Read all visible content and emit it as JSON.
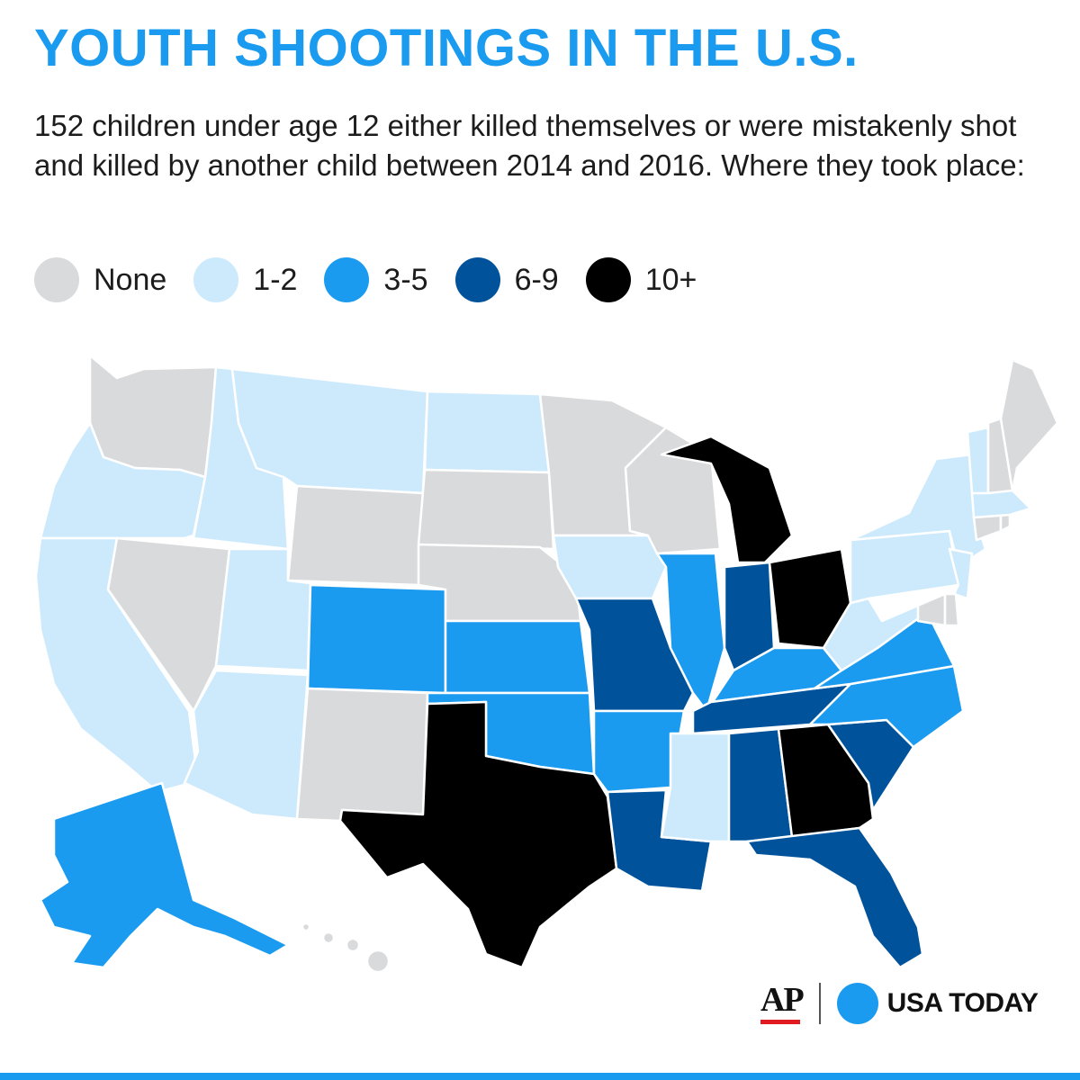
{
  "title": "YOUTH SHOOTINGS IN THE U.S.",
  "subtitle": "152 children under age 12 either killed themselves or were mistakenly shot and  killed by another child between 2014 and 2016. Where they took place:",
  "legend": [
    {
      "label": "None",
      "color": "#d9dadc"
    },
    {
      "label": "1-2",
      "color": "#cdeafd"
    },
    {
      "label": "3-5",
      "color": "#1a9bf0"
    },
    {
      "label": "6-9",
      "color": "#00539b"
    },
    {
      "label": "10+",
      "color": "#000000"
    }
  ],
  "states": [
    {
      "name": "Washington",
      "category": "None"
    },
    {
      "name": "Oregon",
      "category": "1-2"
    },
    {
      "name": "California",
      "category": "1-2"
    },
    {
      "name": "Idaho",
      "category": "1-2"
    },
    {
      "name": "Nevada",
      "category": "None"
    },
    {
      "name": "Montana",
      "category": "1-2"
    },
    {
      "name": "Wyoming",
      "category": "None"
    },
    {
      "name": "Utah",
      "category": "1-2"
    },
    {
      "name": "Arizona",
      "category": "1-2"
    },
    {
      "name": "Colorado",
      "category": "3-5"
    },
    {
      "name": "New Mexico",
      "category": "None"
    },
    {
      "name": "North Dakota",
      "category": "1-2"
    },
    {
      "name": "South Dakota",
      "category": "None"
    },
    {
      "name": "Nebraska",
      "category": "None"
    },
    {
      "name": "Kansas",
      "category": "3-5"
    },
    {
      "name": "Oklahoma",
      "category": "3-5"
    },
    {
      "name": "Texas",
      "category": "10+"
    },
    {
      "name": "Minnesota",
      "category": "None"
    },
    {
      "name": "Iowa",
      "category": "1-2"
    },
    {
      "name": "Missouri",
      "category": "6-9"
    },
    {
      "name": "Arkansas",
      "category": "3-5"
    },
    {
      "name": "Louisiana",
      "category": "6-9"
    },
    {
      "name": "Wisconsin",
      "category": "None"
    },
    {
      "name": "Illinois",
      "category": "3-5"
    },
    {
      "name": "Michigan",
      "category": "10+"
    },
    {
      "name": "Indiana",
      "category": "6-9"
    },
    {
      "name": "Ohio",
      "category": "10+"
    },
    {
      "name": "Kentucky",
      "category": "3-5"
    },
    {
      "name": "Tennessee",
      "category": "6-9"
    },
    {
      "name": "Mississippi",
      "category": "1-2"
    },
    {
      "name": "Alabama",
      "category": "6-9"
    },
    {
      "name": "Georgia",
      "category": "10+"
    },
    {
      "name": "Florida",
      "category": "6-9"
    },
    {
      "name": "South Carolina",
      "category": "6-9"
    },
    {
      "name": "North Carolina",
      "category": "3-5"
    },
    {
      "name": "Virginia",
      "category": "3-5"
    },
    {
      "name": "West Virginia",
      "category": "1-2"
    },
    {
      "name": "Pennsylvania",
      "category": "1-2"
    },
    {
      "name": "New York",
      "category": "1-2"
    },
    {
      "name": "New Jersey",
      "category": "1-2"
    },
    {
      "name": "Maryland",
      "category": "None"
    },
    {
      "name": "Delaware",
      "category": "None"
    },
    {
      "name": "Connecticut",
      "category": "None"
    },
    {
      "name": "Rhode Island",
      "category": "None"
    },
    {
      "name": "Massachusetts",
      "category": "1-2"
    },
    {
      "name": "Vermont",
      "category": "1-2"
    },
    {
      "name": "New Hampshire",
      "category": "None"
    },
    {
      "name": "Maine",
      "category": "None"
    },
    {
      "name": "Alaska",
      "category": "3-5"
    },
    {
      "name": "Hawaii",
      "category": "None"
    }
  ],
  "footer": {
    "ap": "AP",
    "usa_today": "USA TODAY"
  }
}
